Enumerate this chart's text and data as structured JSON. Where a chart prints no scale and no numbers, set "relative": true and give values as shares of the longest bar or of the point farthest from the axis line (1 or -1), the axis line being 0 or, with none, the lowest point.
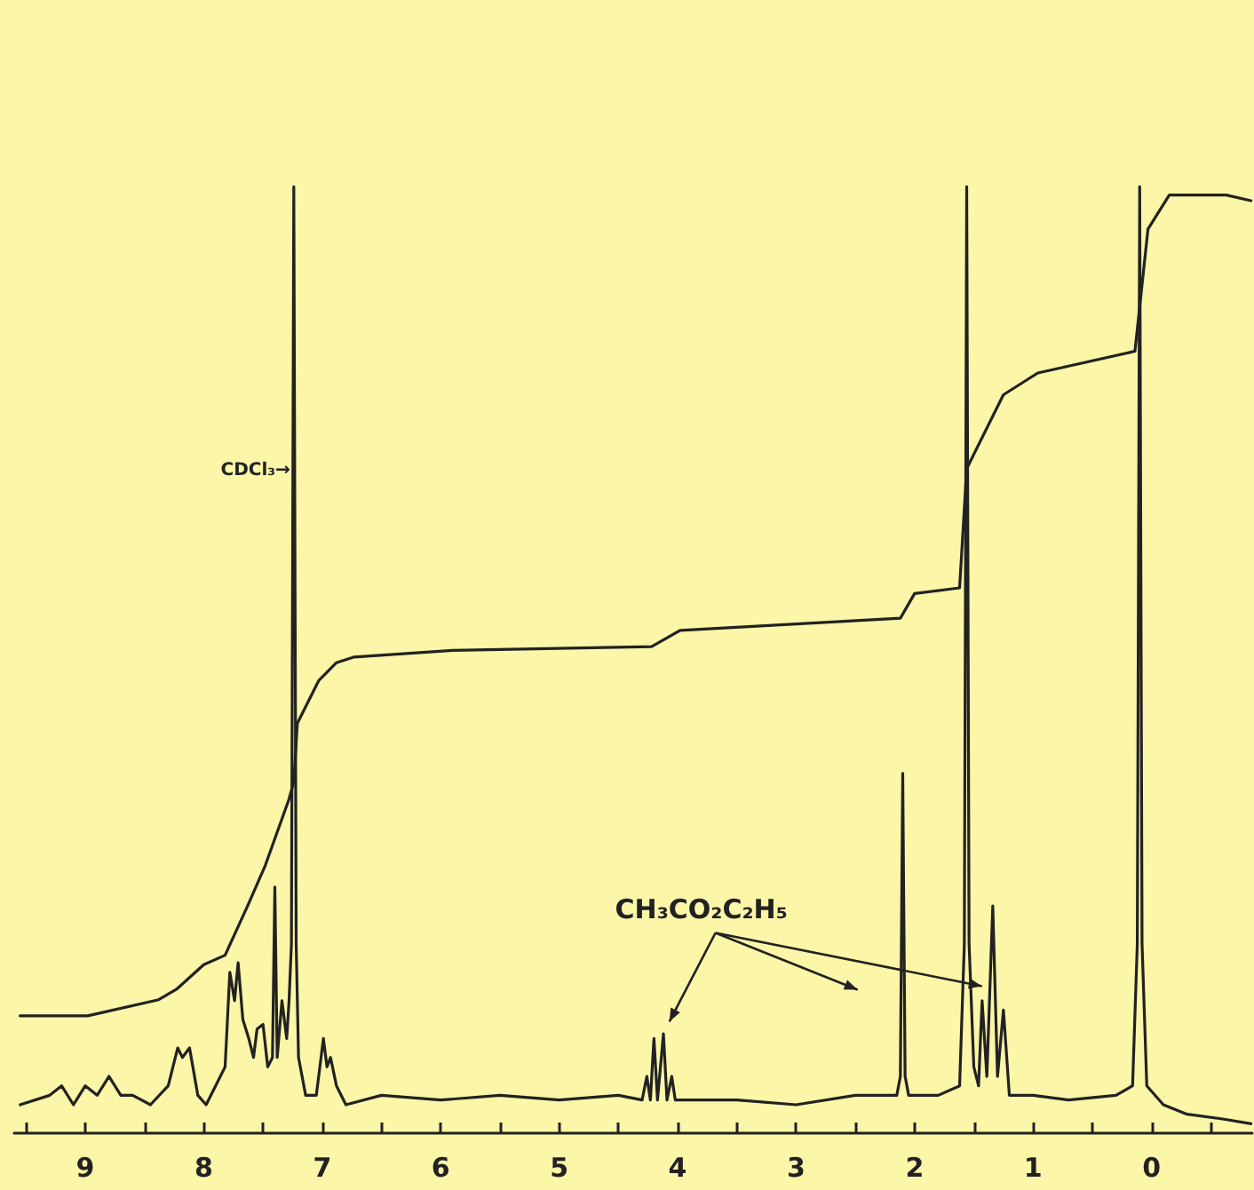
{
  "chart_data": {
    "type": "line",
    "relative": true,
    "marker": "none",
    "line_style": "solid",
    "xlim": [
      9.6,
      -0.85
    ],
    "xticks": [
      {
        "value": 9.5,
        "label": null
      },
      9,
      {
        "value": 8.5,
        "label": null
      },
      8,
      {
        "value": 7.5,
        "label": null
      },
      7,
      {
        "value": 6.5,
        "label": null
      },
      6,
      {
        "value": 5.5,
        "label": null
      },
      5,
      {
        "value": 4.5,
        "label": null
      },
      4,
      {
        "value": 3.5,
        "label": null
      },
      3,
      {
        "value": 2.5,
        "label": null
      },
      2,
      {
        "value": 1.5,
        "label": null
      },
      1,
      {
        "value": 0.5,
        "label": null
      },
      0,
      {
        "value": -0.5,
        "label": null
      }
    ],
    "tick_labels": "x",
    "series": [
      {
        "color": "#222222",
        "x": [
          9.55,
          9.3,
          9.2,
          9.1,
          9.0,
          8.9,
          8.8,
          8.7,
          8.6,
          8.45,
          8.3,
          8.22,
          8.18,
          8.12,
          8.05,
          7.98,
          7.9,
          7.82,
          7.78,
          7.74,
          7.71,
          7.67,
          7.62,
          7.58,
          7.55,
          7.5,
          7.46,
          7.42,
          7.4,
          7.38,
          7.34,
          7.3,
          7.28,
          7.26,
          7.24,
          7.22,
          7.2,
          7.14,
          7.05,
          6.99,
          6.96,
          6.93,
          6.88,
          6.8,
          6.5,
          6.0,
          5.5,
          5.0,
          4.5,
          4.3,
          4.26,
          4.23,
          4.2,
          4.17,
          4.12,
          4.09,
          4.05,
          4.02,
          3.5,
          3.0,
          2.5,
          2.15,
          2.12,
          2.1,
          2.08,
          2.05,
          1.8,
          1.62,
          1.58,
          1.56,
          1.54,
          1.5,
          1.46,
          1.43,
          1.39,
          1.34,
          1.3,
          1.25,
          1.2,
          1.0,
          0.7,
          0.3,
          0.16,
          0.12,
          0.1,
          0.08,
          0.04,
          -0.1,
          -0.3,
          -0.6,
          -0.84
        ],
        "values": [
          0.03,
          0.04,
          0.05,
          0.03,
          0.05,
          0.04,
          0.06,
          0.04,
          0.04,
          0.03,
          0.05,
          0.09,
          0.08,
          0.09,
          0.04,
          0.03,
          0.05,
          0.07,
          0.17,
          0.14,
          0.18,
          0.12,
          0.1,
          0.08,
          0.11,
          0.115,
          0.07,
          0.08,
          0.26,
          0.08,
          0.14,
          0.1,
          0.14,
          0.2,
          1.0,
          0.2,
          0.08,
          0.04,
          0.04,
          0.1,
          0.07,
          0.08,
          0.05,
          0.03,
          0.04,
          0.035,
          0.04,
          0.035,
          0.04,
          0.035,
          0.06,
          0.035,
          0.1,
          0.035,
          0.105,
          0.035,
          0.06,
          0.035,
          0.035,
          0.03,
          0.04,
          0.04,
          0.06,
          0.38,
          0.06,
          0.04,
          0.04,
          0.05,
          0.2,
          1.0,
          0.2,
          0.07,
          0.05,
          0.14,
          0.06,
          0.24,
          0.06,
          0.13,
          0.04,
          0.04,
          0.035,
          0.04,
          0.05,
          0.2,
          1.0,
          0.2,
          0.05,
          0.03,
          0.02,
          0.015,
          0.01
        ]
      },
      {
        "color": "#222222",
        "x": [
          9.55,
          8.98,
          8.38,
          8.23,
          8.0,
          7.82,
          7.63,
          7.48,
          7.28,
          7.24,
          7.21,
          7.03,
          6.88,
          6.73,
          5.9,
          4.22,
          3.98,
          2.12,
          2.0,
          1.62,
          1.56,
          1.25,
          0.96,
          0.14,
          0.03,
          -0.15,
          -0.63,
          -0.84
        ],
        "values": [
          0.124,
          0.124,
          0.141,
          0.152,
          0.178,
          0.188,
          0.24,
          0.283,
          0.353,
          0.371,
          0.433,
          0.478,
          0.497,
          0.503,
          0.51,
          0.514,
          0.531,
          0.544,
          0.57,
          0.576,
          0.702,
          0.78,
          0.803,
          0.826,
          0.955,
          0.991,
          0.991,
          0.985
        ]
      }
    ],
    "annotations": [
      {
        "text": "CDCl₃→",
        "x": 7.27,
        "y": 0.7
      },
      "CH₃CO₂C₂H₅"
    ]
  }
}
